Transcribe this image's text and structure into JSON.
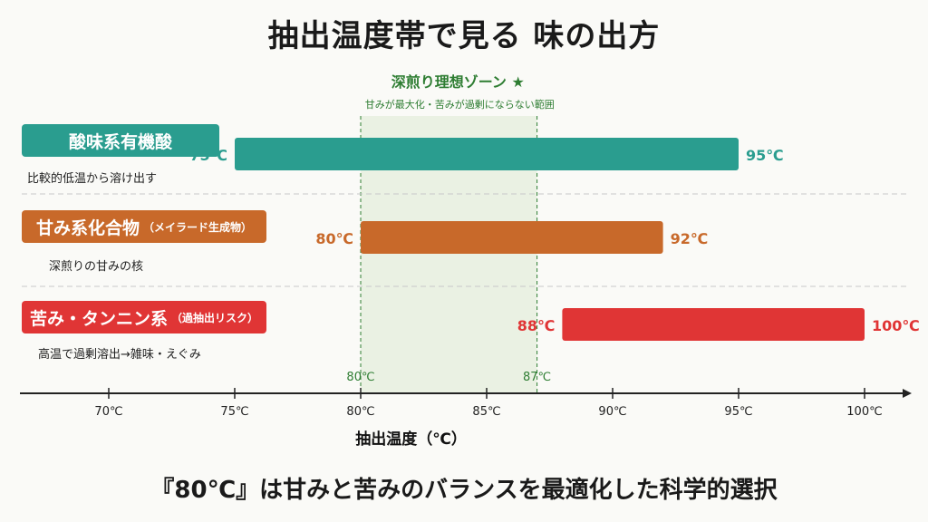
{
  "title": "抽出温度帯で見る 味の出方",
  "footer": "『80℃』は甘みと苦みのバランスを最適化した科学的選択",
  "zone": {
    "title": "深煎り理想ゾーン ★",
    "subtitle": "甘みが最大化・苦みが過剰にならない範囲",
    "start": 80,
    "end": 87,
    "start_label": "80℃",
    "end_label": "87℃"
  },
  "colors": {
    "teal": "#2a9d8f",
    "orange": "#c8692a",
    "red": "#e03535",
    "zone": "#2e7d32"
  },
  "chart_data": {
    "type": "bar",
    "orientation": "horizontal-range",
    "xlabel": "抽出温度（℃）",
    "xticks": [
      70,
      75,
      80,
      85,
      90,
      95,
      100
    ],
    "xtick_labels": [
      "70℃",
      "75℃",
      "80℃",
      "85℃",
      "90℃",
      "95℃",
      "100℃"
    ],
    "series": [
      {
        "name": "酸味系有機酸",
        "name_extra": "",
        "note": "比較的低温から溶け出す",
        "start": 75,
        "end": 95,
        "start_label": "75℃",
        "end_label": "95℃",
        "color": "#2a9d8f"
      },
      {
        "name": "甘み系化合物",
        "name_extra": "（メイラード生成物）",
        "note": "深煎りの甘みの核",
        "start": 80,
        "end": 92,
        "start_label": "80℃",
        "end_label": "92℃",
        "color": "#c8692a"
      },
      {
        "name": "苦み・タンニン系",
        "name_extra": "（過抽出リスク）",
        "note": "高温で過剰溶出→雑味・えぐみ",
        "start": 88,
        "end": 100,
        "start_label": "88℃",
        "end_label": "100℃",
        "color": "#e03535"
      }
    ]
  }
}
